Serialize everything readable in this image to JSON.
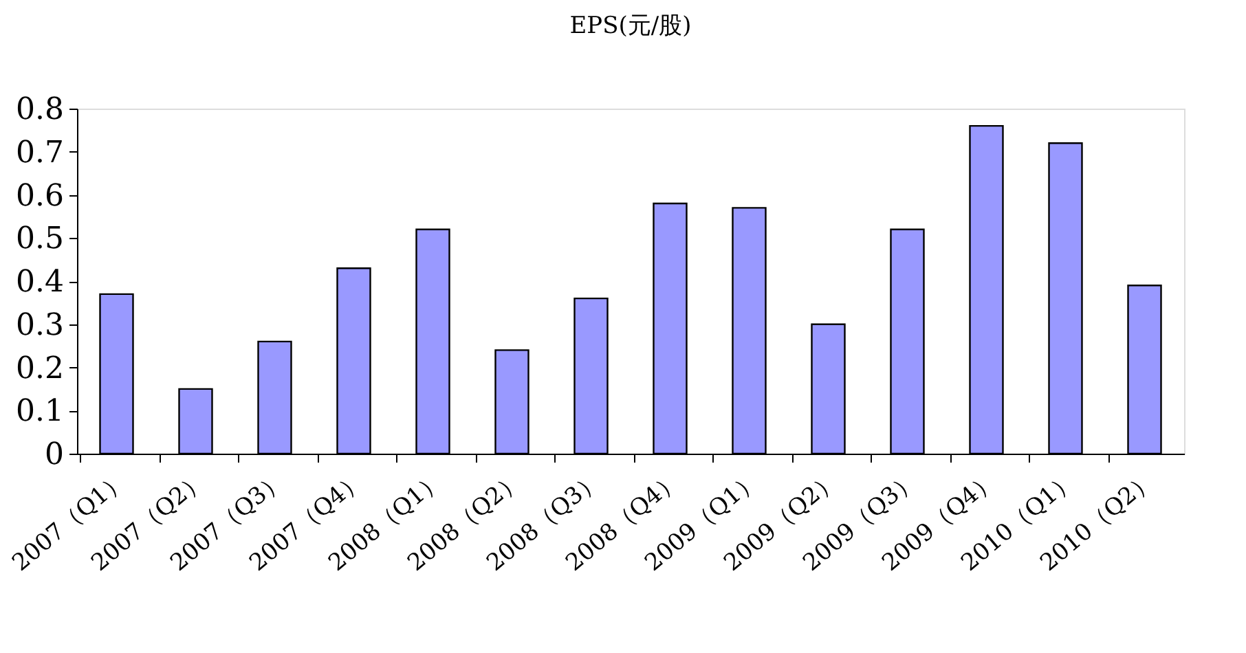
{
  "chart_data": {
    "type": "bar",
    "title": "EPS(元/股)",
    "categories": [
      "2007（Q1）",
      "2007（Q2）",
      "2007（Q3）",
      "2007（Q4）",
      "2008（Q1）",
      "2008（Q2）",
      "2008（Q3）",
      "2008（Q4）",
      "2009（Q1）",
      "2009（Q2）",
      "2009（Q3）",
      "2009（Q4）",
      "2010（Q1）",
      "2010（Q2）"
    ],
    "values": [
      0.37,
      0.15,
      0.26,
      0.43,
      0.52,
      0.24,
      0.36,
      0.58,
      0.57,
      0.3,
      0.52,
      0.76,
      0.72,
      0.39
    ],
    "color": "#9999ff",
    "ylim": [
      0,
      0.8
    ],
    "yticks": [
      0,
      0.1,
      0.2,
      0.3,
      0.4,
      0.5,
      0.6,
      0.7,
      0.8
    ],
    "grid": false
  }
}
